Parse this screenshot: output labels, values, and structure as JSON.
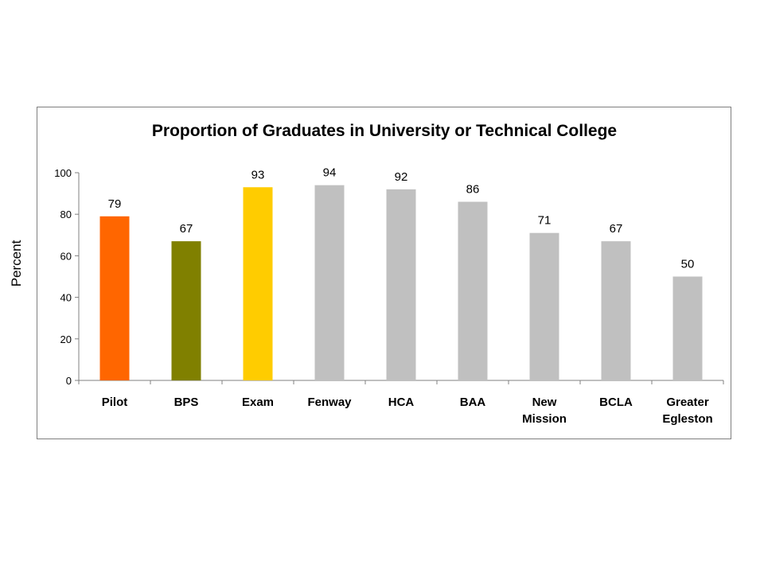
{
  "chart_data": {
    "type": "bar",
    "title": "Proportion of Graduates in University or Technical College",
    "ylabel": "Percent",
    "xlabel": "",
    "ylim": [
      0,
      100
    ],
    "yticks": [
      0,
      20,
      40,
      60,
      80,
      100
    ],
    "grid": false,
    "legend": "none",
    "categories": [
      [
        "Pilot"
      ],
      [
        "BPS"
      ],
      [
        "Exam"
      ],
      [
        "Fenway"
      ],
      [
        "HCA"
      ],
      [
        "BAA"
      ],
      [
        "New",
        "Mission"
      ],
      [
        "BCLA"
      ],
      [
        "Greater",
        "Egleston"
      ]
    ],
    "values": [
      79,
      67,
      93,
      94,
      92,
      86,
      71,
      67,
      50
    ],
    "colors": [
      "#ff6600",
      "#808000",
      "#ffcc00",
      "#c0c0c0",
      "#c0c0c0",
      "#c0c0c0",
      "#c0c0c0",
      "#c0c0c0",
      "#c0c0c0"
    ]
  }
}
